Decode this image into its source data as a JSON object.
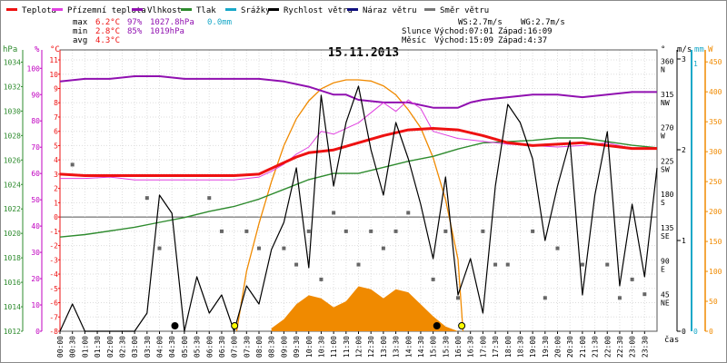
{
  "legend": [
    {
      "label": "Teplota",
      "color": "#e11"
    },
    {
      "label": "Přízemní teplota",
      "color": "#e040e0"
    },
    {
      "label": "Vlhkost",
      "color": "#9010b0"
    },
    {
      "label": "Tlak",
      "color": "#2e8b2e"
    },
    {
      "label": "Srážky",
      "color": "#18a8c8"
    },
    {
      "label": "Rychlost větru",
      "color": "#000"
    },
    {
      "label": "Náraz větru",
      "color": "#101080"
    },
    {
      "label": "Směr větru",
      "color": "#777"
    }
  ],
  "stats": {
    "max_label": "max",
    "max_temp": "6.2°C",
    "max_hum": "97%",
    "max_press": "1027.8hPa",
    "max_rain": "0.0mm",
    "min_label": "min",
    "min_temp": "2.8°C",
    "min_hum": "85%",
    "min_press": "1019hPa",
    "avg_label": "avg",
    "avg_temp": "4.3°C"
  },
  "wind_info": {
    "ws": "WS:2.7m/s",
    "wg": "WG:2.7m/s"
  },
  "sun_info": {
    "label": "Slunce",
    "rise": "Východ:07:01",
    "set": "Západ:16:09"
  },
  "moon_info": {
    "label": "Měsíc",
    "rise": "Východ:15:09",
    "set": "Západ:4:37"
  },
  "date": "15.11.2013",
  "axis_titles": {
    "hpa": "hPa",
    "pct": "%",
    "degc": "°C",
    "deg": "°",
    "ms": "m/s",
    "mm": "mm",
    "w": "W",
    "time": "čas"
  },
  "chart_data": {
    "type": "line",
    "title": "15.11.2013",
    "x_ticks": [
      "00:00",
      "00:30",
      "01:00",
      "01:30",
      "02:00",
      "02:30",
      "03:00",
      "03:30",
      "04:00",
      "04:30",
      "05:00",
      "05:30",
      "06:00",
      "06:30",
      "07:00",
      "07:30",
      "08:00",
      "08:30",
      "09:00",
      "09:30",
      "10:00",
      "10:30",
      "11:00",
      "11:30",
      "12:00",
      "12:30",
      "13:00",
      "13:30",
      "14:00",
      "14:30",
      "15:00",
      "15:30",
      "16:00",
      "16:30",
      "17:00",
      "17:30",
      "18:00",
      "18:30",
      "19:00",
      "19:30",
      "20:00",
      "20:30",
      "21:00",
      "21:30",
      "22:00",
      "22:30",
      "23:00",
      "23:30"
    ],
    "xlim": [
      0,
      24
    ],
    "axes": {
      "pressure_hpa": {
        "ticks": [
          1012,
          1014,
          1016,
          1018,
          1020,
          1022,
          1024,
          1026,
          1028,
          1030,
          1032,
          1034
        ],
        "range": [
          1012,
          1035
        ],
        "color": "#2e8b2e"
      },
      "humidity_pct": {
        "ticks": [
          0,
          10,
          20,
          30,
          40,
          50,
          60,
          70,
          80,
          90,
          100
        ],
        "range": [
          0,
          107
        ],
        "color": "#c000c0"
      },
      "temperature_c": {
        "ticks": [
          -8,
          -7,
          -6,
          -5,
          -4,
          -3,
          -2,
          -1,
          0,
          1,
          2,
          3,
          4,
          5,
          6,
          7,
          8,
          9,
          10,
          11
        ],
        "range": [
          -8,
          11.7
        ],
        "color": "#e11"
      },
      "wind_dir_deg": {
        "ticks": [
          45,
          90,
          135,
          180,
          225,
          270,
          315,
          360
        ],
        "labels": [
          "NE",
          "E",
          "SE",
          "S",
          "SW",
          "W",
          "NW",
          "N"
        ],
        "range": [
          0,
          380
        ]
      },
      "wind_speed_ms": {
        "ticks": [
          0,
          1,
          2,
          3
        ],
        "range": [
          0,
          3.1
        ]
      },
      "rain_mm": {
        "ticks": [
          0,
          1
        ],
        "range": [
          0,
          1.05
        ],
        "color": "#18a8c8"
      },
      "solar_w": {
        "ticks": [
          0,
          50,
          100,
          150,
          200,
          250,
          300,
          350,
          400,
          450
        ],
        "range": [
          0,
          470
        ],
        "color": "#f08a00"
      }
    },
    "series": [
      {
        "name": "Teplota",
        "axis": "temperature_c",
        "color": "#e11",
        "x": [
          0,
          1,
          2,
          3,
          4,
          5,
          6,
          7,
          8,
          9,
          9.5,
          10,
          11,
          12,
          13,
          14,
          15,
          16,
          17,
          18,
          19,
          20,
          21,
          22,
          23,
          24
        ],
        "y": [
          3.0,
          2.9,
          2.9,
          2.9,
          2.9,
          2.9,
          2.9,
          2.9,
          3.0,
          3.8,
          4.2,
          4.5,
          4.7,
          5.2,
          5.7,
          6.1,
          6.2,
          6.1,
          5.7,
          5.2,
          5.0,
          5.1,
          5.2,
          5.0,
          4.8,
          4.8
        ]
      },
      {
        "name": "Přízemní teplota",
        "axis": "temperature_c",
        "color": "#e040e0",
        "x": [
          0,
          1,
          2,
          3,
          4,
          5,
          6,
          7,
          8,
          8.5,
          9,
          9.5,
          10,
          10.5,
          11,
          12,
          12.5,
          13,
          13.5,
          14,
          14.5,
          15,
          16,
          17,
          18,
          19,
          20,
          21,
          22,
          23,
          24
        ],
        "y": [
          2.7,
          2.7,
          2.8,
          2.6,
          2.6,
          2.6,
          2.6,
          2.6,
          2.8,
          3.2,
          3.7,
          4.4,
          4.9,
          6.0,
          5.8,
          6.6,
          7.3,
          8.0,
          7.4,
          8.2,
          7.6,
          6.0,
          5.5,
          5.3,
          5.1,
          5.0,
          4.9,
          5.0,
          5.2,
          4.8,
          4.8
        ]
      },
      {
        "name": "Vlhkost",
        "axis": "humidity_pct",
        "color": "#9010b0",
        "x": [
          0,
          1,
          2,
          3,
          4,
          5,
          6,
          7,
          8,
          9,
          10,
          11,
          11.5,
          12,
          13,
          14,
          15,
          15.5,
          16,
          16.5,
          17,
          18,
          19,
          20,
          21,
          22,
          23,
          24
        ],
        "y": [
          95,
          96,
          96,
          97,
          97,
          96,
          96,
          96,
          96,
          95,
          93,
          90,
          90,
          88,
          87,
          87,
          85,
          85,
          85,
          87,
          88,
          89,
          90,
          90,
          89,
          90,
          91,
          91
        ]
      },
      {
        "name": "Tlak",
        "axis": "pressure_hpa",
        "color": "#2e8b2e",
        "x": [
          0,
          1,
          2,
          3,
          4,
          5,
          6,
          7,
          8,
          9,
          10,
          11,
          12,
          13,
          14,
          15,
          16,
          17,
          18,
          19,
          20,
          21,
          22,
          23,
          24
        ],
        "y": [
          1019.7,
          1019.9,
          1020.2,
          1020.5,
          1020.9,
          1021.3,
          1021.8,
          1022.2,
          1022.8,
          1023.6,
          1024.4,
          1024.9,
          1024.9,
          1025.4,
          1025.9,
          1026.3,
          1026.9,
          1027.4,
          1027.5,
          1027.6,
          1027.8,
          1027.8,
          1027.5,
          1027.2,
          1027.0
        ]
      },
      {
        "name": "Rychlost větru",
        "axis": "wind_speed_ms",
        "color": "#000",
        "x": [
          0,
          0.5,
          1,
          2,
          3,
          3.5,
          4,
          4.5,
          5,
          5.5,
          6,
          6.5,
          7,
          7.5,
          8,
          8.5,
          9,
          9.5,
          10,
          10.5,
          11,
          11.5,
          12,
          12.5,
          13,
          13.5,
          14,
          14.5,
          15,
          15.5,
          16,
          16.5,
          17,
          17.5,
          18,
          18.5,
          19,
          19.5,
          20,
          20.5,
          21,
          21.5,
          22,
          22.5,
          23,
          23.5,
          24
        ],
        "y": [
          0,
          0.3,
          0,
          0,
          0,
          0.2,
          1.5,
          1.3,
          0,
          0.6,
          0.2,
          0.4,
          0,
          0.5,
          0.3,
          0.9,
          1.2,
          1.8,
          0.7,
          2.6,
          1.6,
          2.3,
          2.7,
          2.0,
          1.5,
          2.3,
          1.9,
          1.4,
          0.8,
          1.7,
          0.4,
          0.8,
          0.2,
          1.6,
          2.5,
          2.3,
          1.9,
          1.0,
          1.6,
          2.1,
          0.4,
          1.5,
          2.2,
          0.5,
          1.4,
          0.6,
          1.8
        ]
      },
      {
        "name": "Směr větru",
        "axis": "wind_dir_deg",
        "color": "#666",
        "x": [
          0.5,
          3.5,
          4,
          6,
          6.5,
          7.5,
          8,
          9,
          9.5,
          10,
          10.5,
          11,
          11.5,
          12,
          12.5,
          13,
          13.5,
          14,
          15,
          15.5,
          16,
          17,
          17.5,
          18,
          19,
          19.5,
          20,
          21,
          22,
          22.5,
          23,
          23.5
        ],
        "y": [
          225,
          180,
          112,
          180,
          135,
          135,
          112,
          112,
          90,
          135,
          70,
          160,
          135,
          90,
          135,
          112,
          135,
          160,
          70,
          135,
          45,
          135,
          90,
          90,
          135,
          45,
          112,
          90,
          90,
          45,
          70,
          50
        ]
      },
      {
        "name": "Solar",
        "axis": "solar_w",
        "color": "#f08a00",
        "x": [
          7.1,
          7.5,
          8,
          8.5,
          9,
          9.5,
          10,
          10.5,
          11,
          11.5,
          12,
          12.5,
          13,
          13.5,
          14,
          14.5,
          15,
          15.5,
          16,
          16.2
        ],
        "y": [
          0,
          100,
          180,
          250,
          310,
          355,
          385,
          405,
          415,
          420,
          420,
          418,
          410,
          395,
          370,
          340,
          290,
          220,
          120,
          0
        ]
      },
      {
        "name": "Solar measured",
        "axis": "solar_w",
        "color": "#f08a00",
        "x": [
          8.5,
          9,
          9.5,
          10,
          10.5,
          11,
          11.5,
          12,
          12.5,
          13,
          13.5,
          14,
          14.5,
          15,
          15.5,
          16
        ],
        "y": [
          5,
          20,
          45,
          60,
          55,
          40,
          50,
          75,
          70,
          55,
          70,
          65,
          45,
          25,
          8,
          0
        ]
      }
    ],
    "events": [
      {
        "type": "moonset",
        "x": 4.62,
        "color": "#000"
      },
      {
        "type": "sunrise",
        "x": 7.02,
        "color": "#ff0"
      },
      {
        "type": "moonrise",
        "x": 15.15,
        "color": "#000"
      },
      {
        "type": "sunset",
        "x": 16.15,
        "color": "#ff0"
      }
    ],
    "grid": true
  }
}
